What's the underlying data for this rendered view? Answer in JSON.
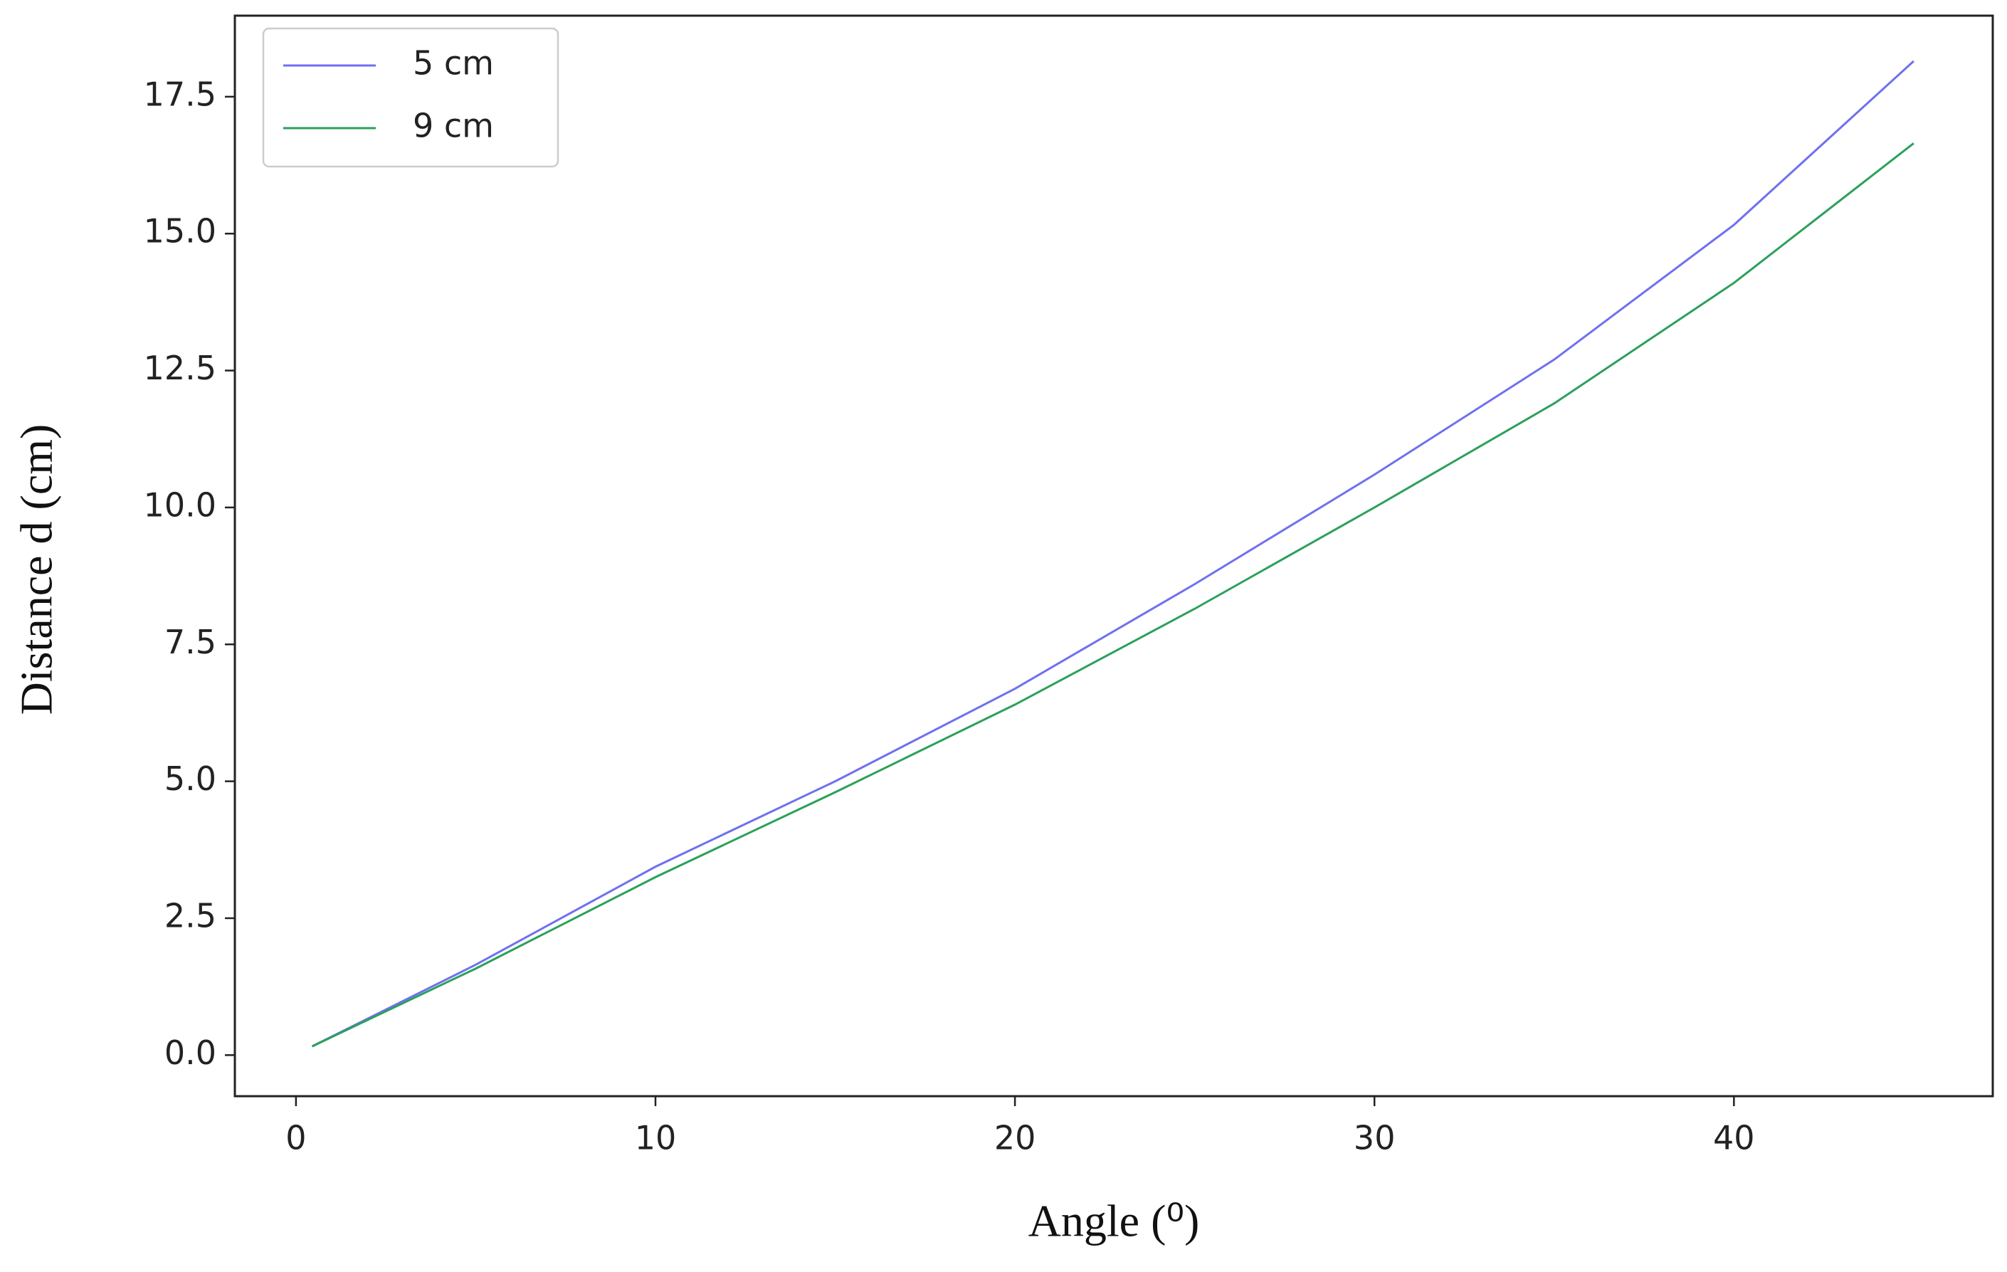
{
  "chart_data": {
    "type": "line",
    "x_label": "Angle (⁰)",
    "y_label": "Distance d (cm)",
    "x": [
      0.45,
      5,
      10,
      15,
      20,
      25,
      30,
      35,
      40,
      45
    ],
    "series": [
      {
        "name": "5 cm",
        "color": "#7070f0",
        "values": [
          0.16,
          1.65,
          3.44,
          5.0,
          6.69,
          8.6,
          10.6,
          12.7,
          15.16,
          18.15
        ]
      },
      {
        "name": "9 cm",
        "color": "#2ca05a",
        "values": [
          0.16,
          1.58,
          3.25,
          4.8,
          6.4,
          8.15,
          10.0,
          11.9,
          14.1,
          16.65
        ]
      }
    ],
    "xlim": [
      -1.7,
      47.2
    ],
    "ylim": [
      -0.75,
      18.98
    ],
    "xticks": [
      0,
      10,
      20,
      30,
      40
    ],
    "yticks": [
      {
        "value": 0,
        "label": "0.0"
      },
      2.5,
      {
        "value": 5,
        "label": "5.0"
      },
      7.5,
      {
        "value": 10,
        "label": "10.0"
      },
      12.5,
      {
        "value": 15,
        "label": "15.0"
      },
      17.5
    ],
    "legend": "upper left",
    "grid": false
  }
}
